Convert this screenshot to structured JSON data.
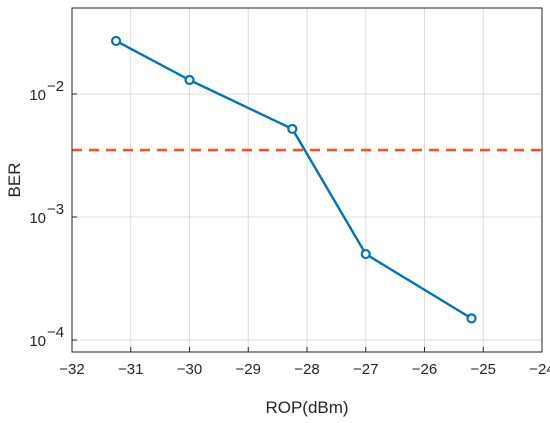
{
  "chart_data": {
    "type": "line",
    "xlabel": "ROP(dBm)",
    "ylabel": "BER",
    "xlim": [
      -32,
      -24
    ],
    "ylim": [
      8e-05,
      0.05
    ],
    "yscale": "log",
    "grid": true,
    "x_ticks": [
      -32,
      -31,
      -30,
      -29,
      -28,
      -27,
      -26,
      -25,
      -24
    ],
    "x_tick_labels": [
      "−32",
      "−31",
      "−30",
      "−29",
      "−28",
      "−27",
      "−26",
      "−25",
      "−24"
    ],
    "y_ticks": [
      {
        "value": 0.01,
        "base": "10",
        "exp": "−2"
      },
      {
        "value": 0.001,
        "base": "10",
        "exp": "−3"
      },
      {
        "value": 0.0001,
        "base": "10",
        "exp": "−4"
      }
    ],
    "series": [
      {
        "x": [
          -31.25,
          -30.0,
          -28.25,
          -27.0,
          -25.2
        ],
        "y": [
          0.027,
          0.013,
          0.0052,
          0.0005,
          0.00015
        ],
        "color": "#0072BD",
        "marker": "circle"
      }
    ],
    "threshold": {
      "y": 0.0035,
      "color": "#EE5522",
      "style": "dashed"
    }
  }
}
